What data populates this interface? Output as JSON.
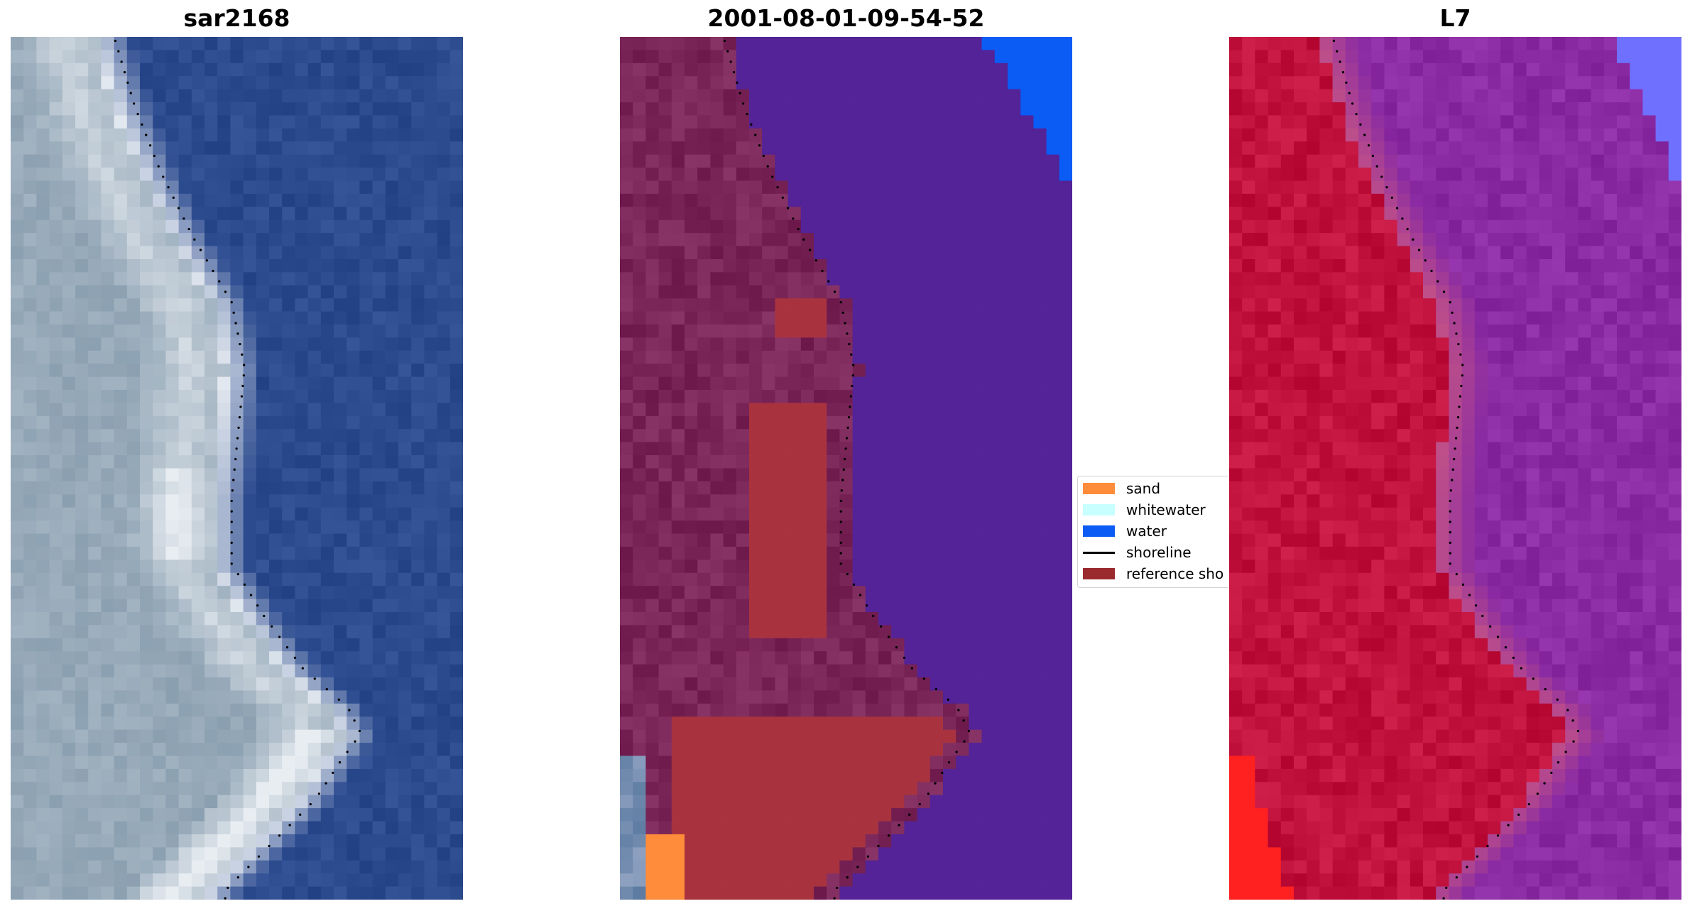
{
  "panels": [
    {
      "title": "sar2168",
      "kind": "rgb"
    },
    {
      "title": "2001-08-01-09-54-52",
      "kind": "classified"
    },
    {
      "title": "L7",
      "kind": "index"
    }
  ],
  "legend": {
    "items": [
      {
        "label": "sand",
        "color": "#ff8c3a",
        "type": "patch"
      },
      {
        "label": "whitewater",
        "color": "#c8ffff",
        "type": "patch"
      },
      {
        "label": "water",
        "color": "#0a5cf5",
        "type": "patch"
      },
      {
        "label": "shoreline",
        "color": "#000000",
        "type": "line"
      },
      {
        "label": "reference sho",
        "color": "#9b2a2e",
        "type": "patch"
      }
    ]
  },
  "colors": {
    "sea_rgb": "#2c4b8f",
    "land_rgb": "#8a9fb0",
    "surf_rgb": "#e8edf2",
    "class_water": "#532397",
    "class_land": "#7a2659",
    "class_ref": "#a8333f",
    "class_sand": "#ff8c3a",
    "class_blue": "#0a5cf5",
    "index_land": "#c0123c",
    "index_water": "#8a2ba3",
    "index_edge": "#c05088",
    "index_hot": "#ff2020",
    "index_cold": "#7070ff"
  }
}
